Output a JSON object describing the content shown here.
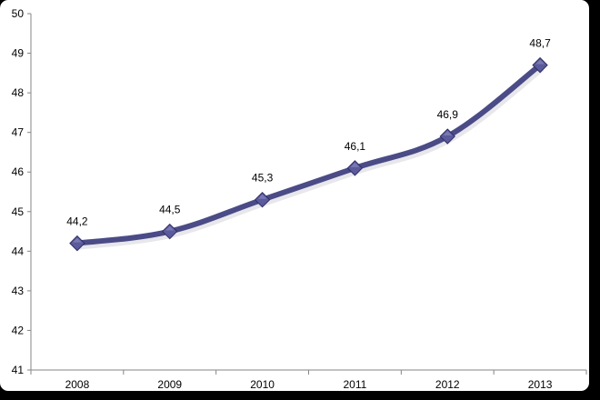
{
  "chart_data": {
    "type": "line",
    "title": "",
    "xlabel": "",
    "ylabel": "",
    "categories": [
      "2008",
      "2009",
      "2010",
      "2011",
      "2012",
      "2013"
    ],
    "series": [
      {
        "values": [
          44.2,
          44.5,
          45.3,
          46.1,
          46.9,
          48.7
        ]
      }
    ],
    "data_labels": [
      "44,2",
      "44,5",
      "45,3",
      "46,1",
      "46,9",
      "48,7"
    ],
    "y_ticks": [
      "41",
      "42",
      "43",
      "44",
      "45",
      "46",
      "47",
      "48",
      "49",
      "50"
    ],
    "ylim": [
      41,
      50
    ],
    "grid": false,
    "legend": "none",
    "colors": {
      "line": "#4b4b87",
      "marker": "#5a5a9c",
      "axis": "#868686"
    }
  }
}
